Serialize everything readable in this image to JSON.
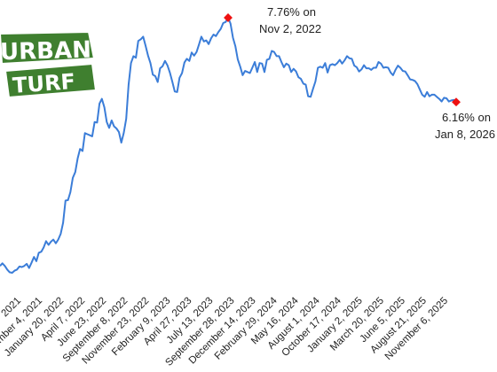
{
  "brand": {
    "logo_line1": "URBAN",
    "logo_line2": "TURF",
    "colors": {
      "green": "#3f7f2f",
      "dark_green": "#2f5f23",
      "light": "#ffffff"
    }
  },
  "colors": {
    "line": "#3b7dd8",
    "marker": "#ee1111",
    "text": "#222222"
  },
  "chart_data": {
    "type": "line",
    "title": "",
    "xlabel": "",
    "ylabel": "",
    "x_tick_labels": [
      "2021",
      "November 4, 2021",
      "January 20, 2022",
      "April 7, 2022",
      "June 23, 2022",
      "September 8, 2022",
      "November 23, 2022",
      "February 9, 2023",
      "April 27, 2023",
      "July 13, 2023",
      "September 28, 2023",
      "December 14, 2023",
      "February 29, 2024",
      "May 16, 2024",
      "August 1, 2024",
      "October 17, 2024",
      "January 2, 2025",
      "March 20, 2025",
      "June 5, 2025",
      "August 21, 2025",
      "November 6, 2025"
    ],
    "ylim": [
      2.7,
      8.0
    ],
    "grid": false,
    "legend": "none",
    "series": [
      {
        "values": [
          3.05,
          3.1,
          3.05,
          2.98,
          2.93,
          2.92,
          2.96,
          2.98,
          3.04,
          3.03,
          3.05,
          3.09,
          3.01,
          3.11,
          3.22,
          3.14,
          3.3,
          3.32,
          3.4,
          3.52,
          3.45,
          3.51,
          3.55,
          3.48,
          3.55,
          3.66,
          3.87,
          4.29,
          4.3,
          4.45,
          4.72,
          4.83,
          5.09,
          5.27,
          5.23,
          5.57,
          5.55,
          5.53,
          5.51,
          5.78,
          5.77,
          6.13,
          6.22,
          6.06,
          5.78,
          5.67,
          5.81,
          5.7,
          5.66,
          5.59,
          5.39,
          5.57,
          5.84,
          6.49,
          6.9,
          7.03,
          7.0,
          7.32,
          7.35,
          7.4,
          7.23,
          7.04,
          6.9,
          6.68,
          6.65,
          6.54,
          6.8,
          6.84,
          6.94,
          6.86,
          6.72,
          6.55,
          6.36,
          6.35,
          6.62,
          6.71,
          6.91,
          6.98,
          6.94,
          7.1,
          7.04,
          7.11,
          7.25,
          7.4,
          7.31,
          7.33,
          7.26,
          7.37,
          7.44,
          7.41,
          7.49,
          7.55,
          7.66,
          7.68,
          7.76,
          7.65,
          7.38,
          7.22,
          6.97,
          6.83,
          6.67,
          6.75,
          6.73,
          6.71,
          6.81,
          6.92,
          6.73,
          6.9,
          6.89,
          6.73,
          6.96,
          6.98,
          7.13,
          7.11,
          7.03,
          7.03,
          6.92,
          6.82,
          6.89,
          6.86,
          6.73,
          6.79,
          6.74,
          6.63,
          6.6,
          6.51,
          6.49,
          6.27,
          6.26,
          6.41,
          6.55,
          6.81,
          6.83,
          6.81,
          6.9,
          6.72,
          6.86,
          6.88,
          6.86,
          6.9,
          6.96,
          6.89,
          6.95,
          7.03,
          6.99,
          6.98,
          6.85,
          6.82,
          6.74,
          6.78,
          6.86,
          6.8,
          6.8,
          6.77,
          6.81,
          6.81,
          6.92,
          6.89,
          6.81,
          6.82,
          6.81,
          6.72,
          6.67,
          6.77,
          6.85,
          6.81,
          6.75,
          6.74,
          6.67,
          6.59,
          6.58,
          6.56,
          6.5,
          6.4,
          6.3,
          6.26,
          6.35,
          6.27,
          6.3,
          6.3,
          6.26,
          6.22,
          6.17,
          6.24,
          6.23,
          6.17,
          6.19,
          6.2,
          6.16
        ]
      }
    ],
    "annotations": [
      {
        "line1": "7.76% on",
        "line2": "Nov 2, 2022",
        "type": "max"
      },
      {
        "line1": "6.16% on",
        "line2": "Jan 8, 2026",
        "type": "last"
      }
    ]
  }
}
